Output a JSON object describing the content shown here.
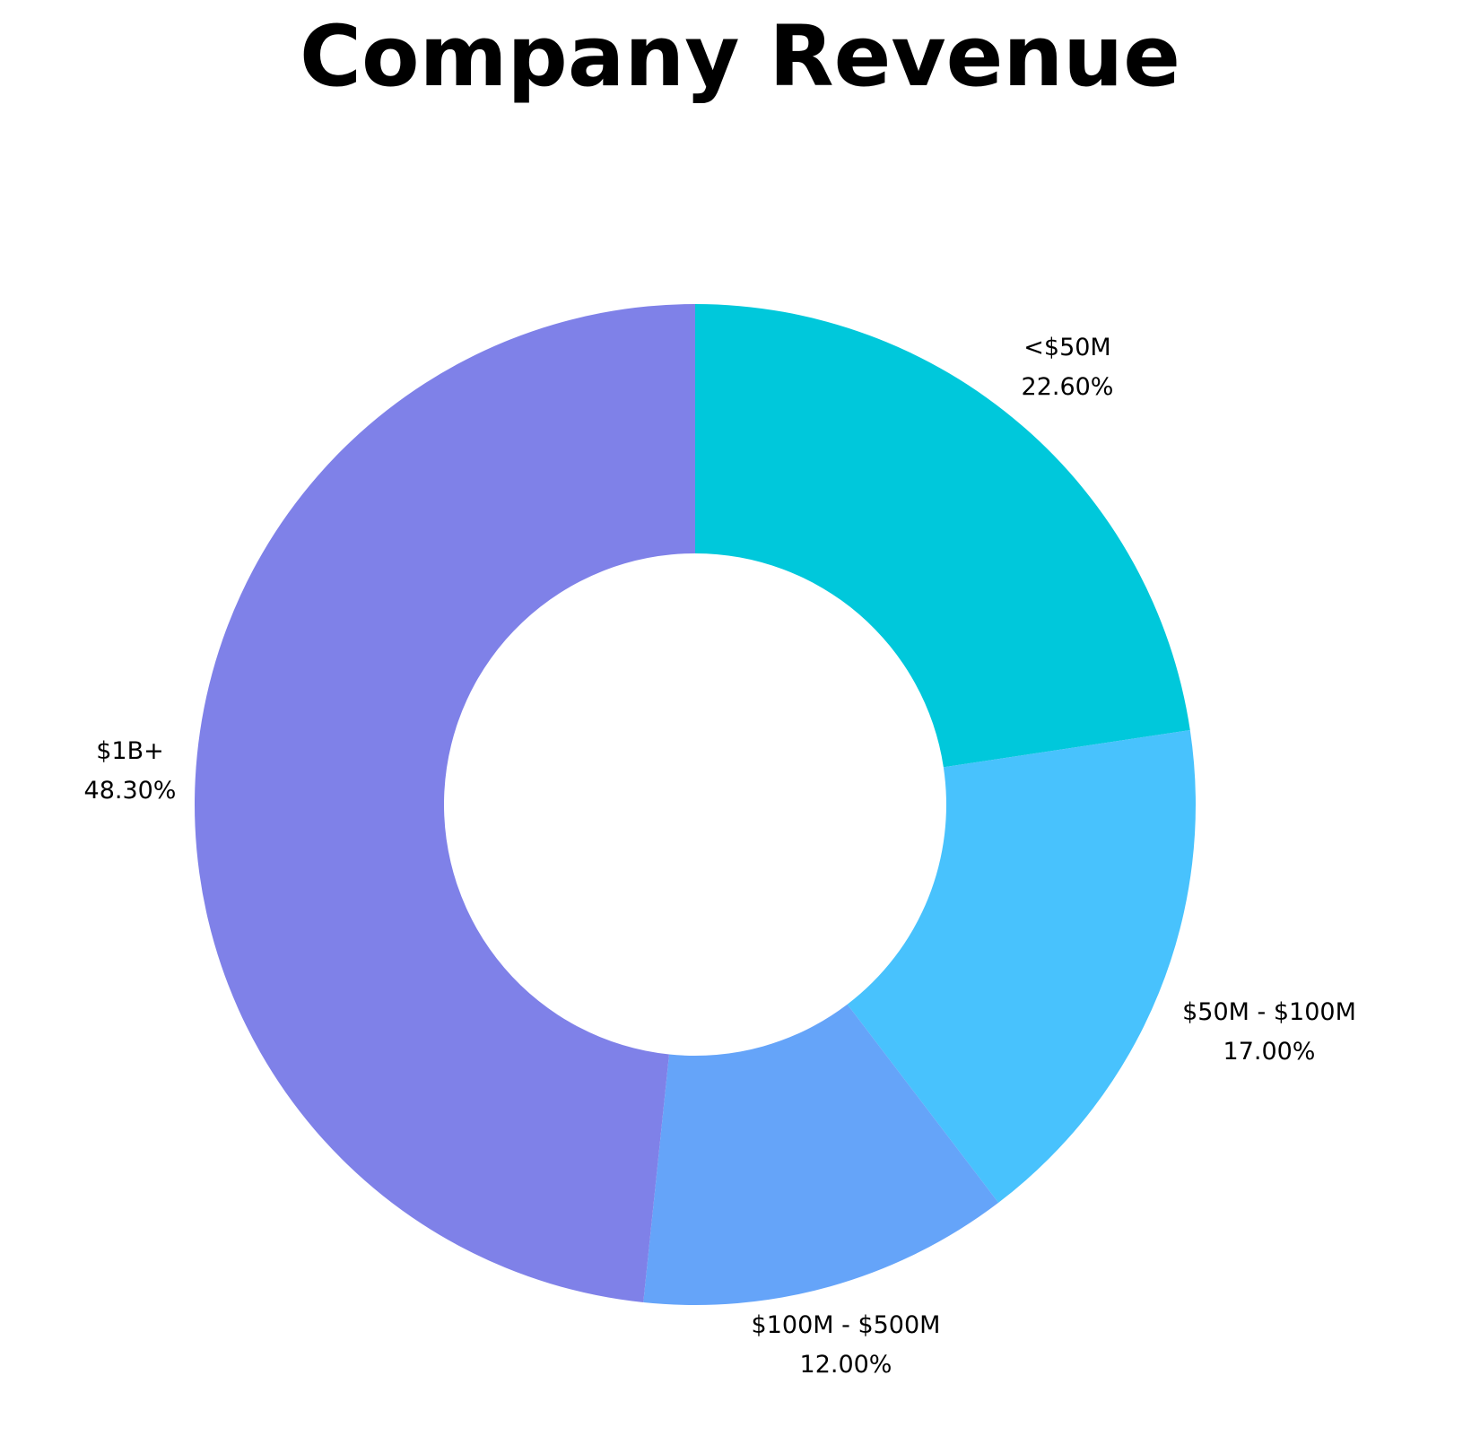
{
  "chart_data": {
    "type": "pie",
    "title": "Company Revenue",
    "donut": true,
    "start_angle_deg": 0,
    "direction": "clockwise",
    "slices": [
      {
        "label": "<$50M",
        "value": 22.6,
        "value_label": "22.60%",
        "color": "#00C8DB"
      },
      {
        "label": "$50M - $100M",
        "value": 17.0,
        "value_label": "17.00%",
        "color": "#48C2FD"
      },
      {
        "label": "$100M - $500M",
        "value": 12.0,
        "value_label": "12.00%",
        "color": "#65A4F9"
      },
      {
        "label": "$1B+",
        "value": 48.3,
        "value_label": "48.30%",
        "color": "#7F81E8"
      }
    ],
    "legend": "none"
  }
}
